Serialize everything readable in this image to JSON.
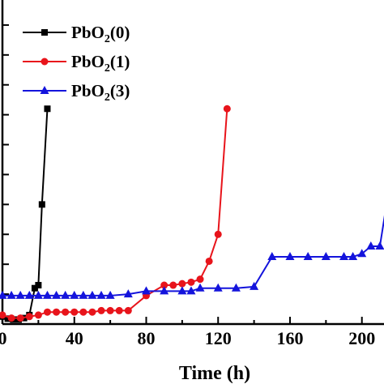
{
  "chart_data": {
    "type": "line",
    "xlabel": "Time (h)",
    "ylabel": "",
    "xlim": [
      0,
      215
    ],
    "ylim": [
      0,
      11
    ],
    "x_ticks": [
      0,
      40,
      80,
      120,
      160,
      200
    ],
    "x_tick_labels": [
      "0",
      "40",
      "80",
      "120",
      "160",
      "200"
    ],
    "x_minor_ticks": [
      20,
      60,
      100,
      140,
      180
    ],
    "y_ticks": [
      1,
      2,
      3,
      4,
      5,
      6,
      7,
      8,
      9,
      10,
      11
    ],
    "grid": false,
    "legend_position": "top-left",
    "series": [
      {
        "name": "PbO2(0)",
        "name_base": "PbO",
        "name_sub": "2",
        "name_suffix": "(0)",
        "color": "#000000",
        "marker": "square",
        "x": [
          0,
          3,
          6,
          9,
          12,
          15,
          18,
          20,
          22,
          25
        ],
        "y": [
          0.25,
          0.18,
          0.15,
          0.15,
          0.2,
          0.3,
          1.2,
          1.3,
          4.0,
          7.2
        ]
      },
      {
        "name": "PbO2(1)",
        "name_base": "PbO",
        "name_sub": "2",
        "name_suffix": "(1)",
        "color": "#e8141b",
        "marker": "circle",
        "x": [
          0,
          5,
          10,
          15,
          20,
          25,
          30,
          35,
          40,
          45,
          50,
          55,
          60,
          65,
          70,
          80,
          90,
          95,
          100,
          105,
          110,
          115,
          120,
          125
        ],
        "y": [
          0.3,
          0.2,
          0.2,
          0.25,
          0.3,
          0.4,
          0.4,
          0.4,
          0.4,
          0.4,
          0.4,
          0.45,
          0.45,
          0.45,
          0.45,
          0.95,
          1.3,
          1.3,
          1.35,
          1.4,
          1.5,
          2.1,
          3.0,
          7.2
        ]
      },
      {
        "name": "PbO2(3)",
        "name_base": "PbO",
        "name_sub": "2",
        "name_suffix": "(3)",
        "color": "#1414dc",
        "marker": "triangle",
        "x": [
          0,
          5,
          10,
          15,
          20,
          25,
          30,
          35,
          40,
          45,
          50,
          55,
          60,
          70,
          80,
          90,
          100,
          105,
          110,
          120,
          130,
          140,
          150,
          160,
          170,
          180,
          190,
          195,
          200,
          205,
          210,
          215
        ],
        "y": [
          0.95,
          0.95,
          0.95,
          0.95,
          0.95,
          0.95,
          0.95,
          0.95,
          0.95,
          0.95,
          0.95,
          0.95,
          0.95,
          1.0,
          1.1,
          1.1,
          1.1,
          1.1,
          1.2,
          1.2,
          1.2,
          1.25,
          2.25,
          2.25,
          2.25,
          2.25,
          2.25,
          2.25,
          2.35,
          2.6,
          2.6,
          4.5
        ]
      }
    ]
  }
}
